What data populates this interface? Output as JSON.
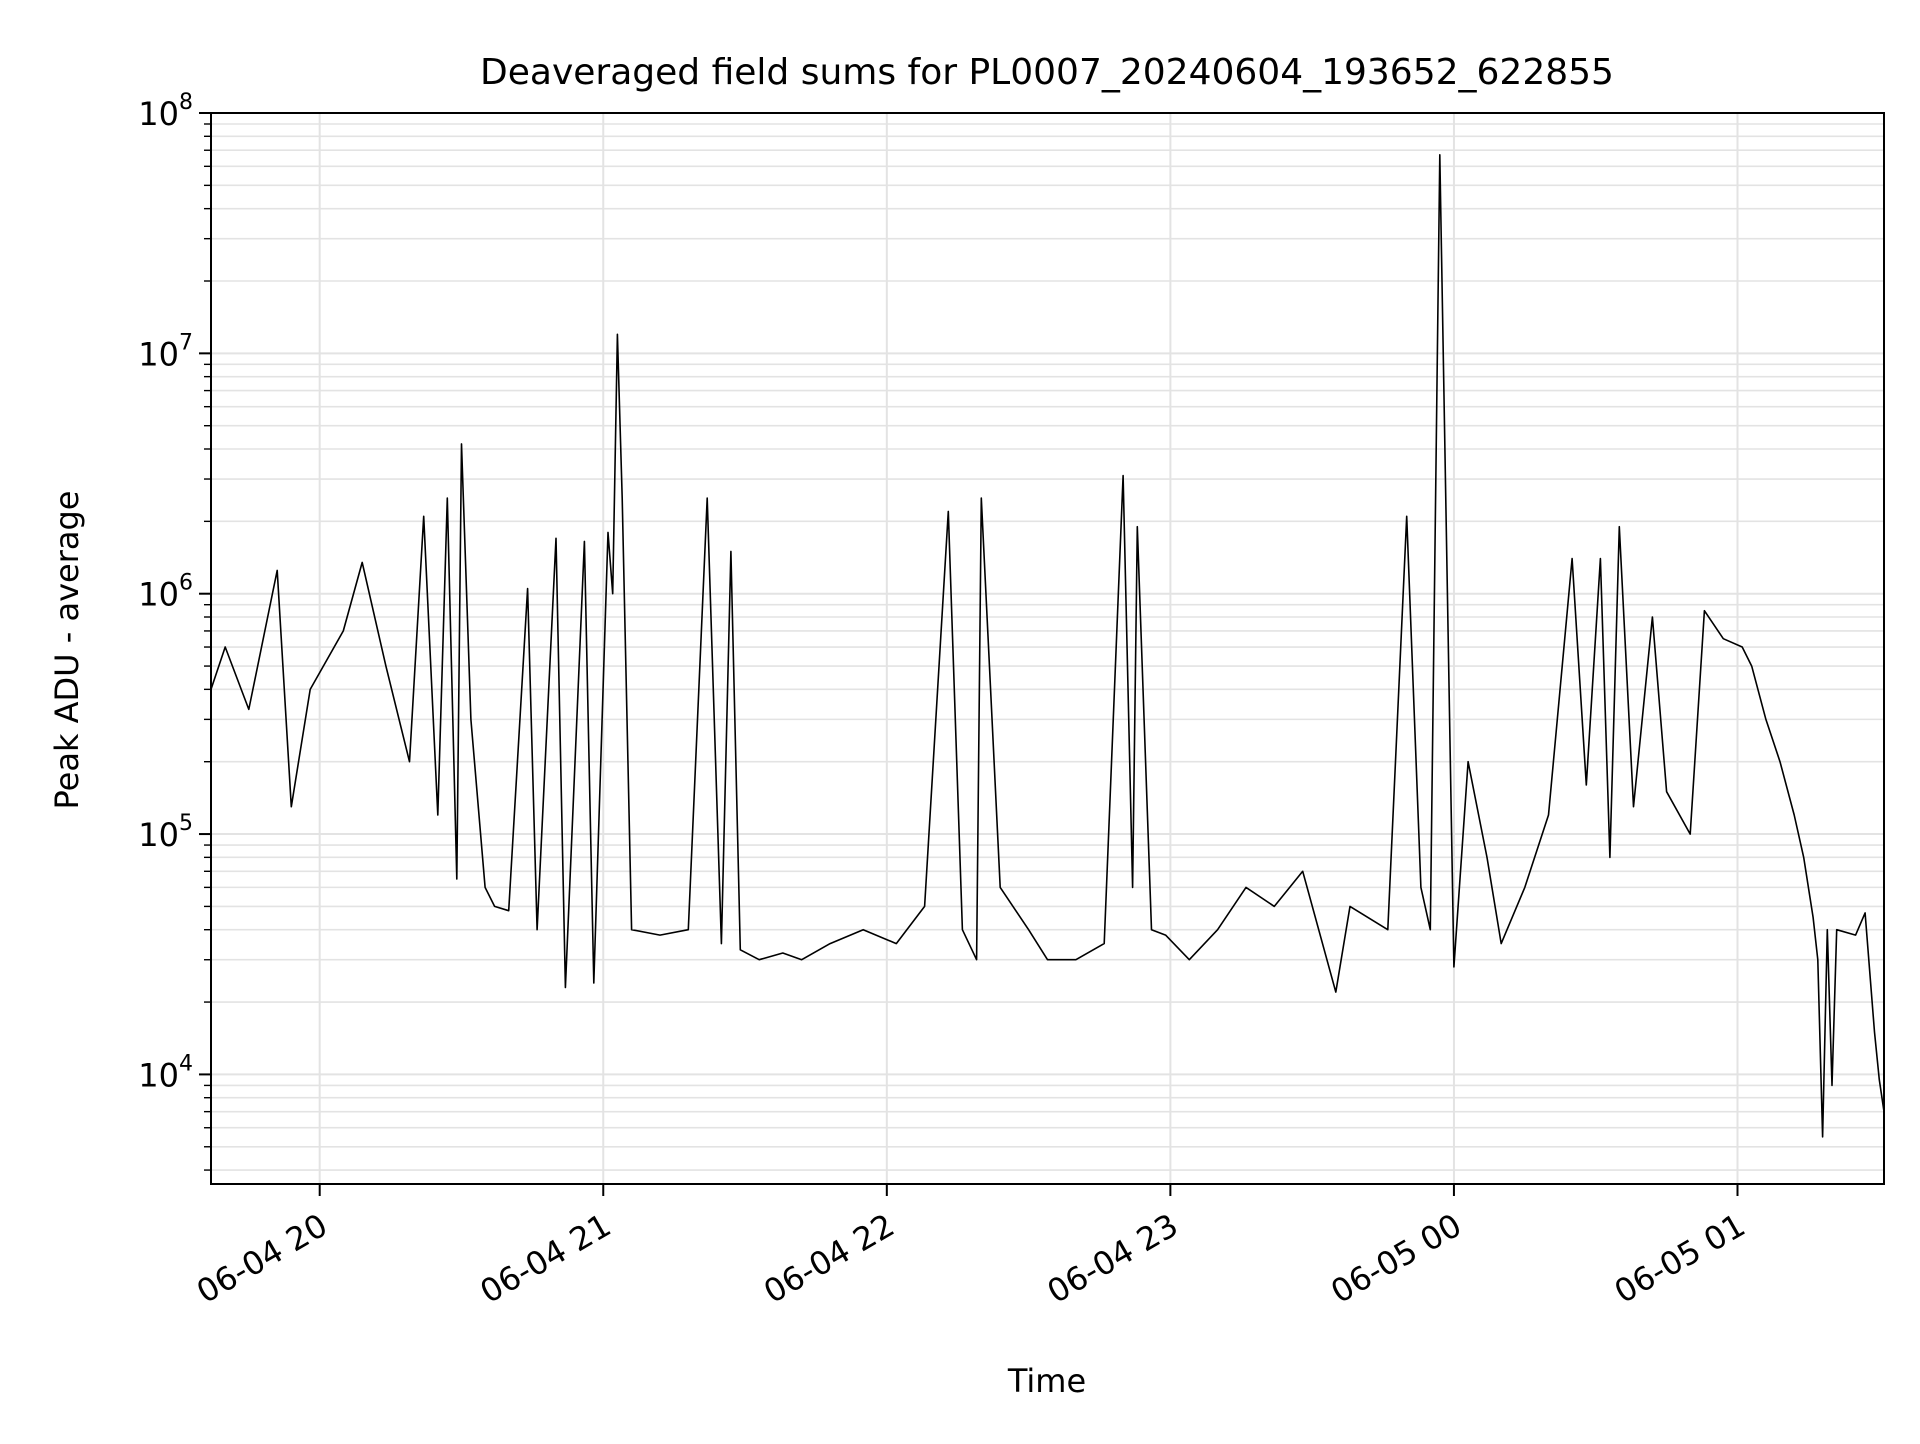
{
  "chart_data": {
    "type": "line",
    "title": "Deaveraged field sums for PL0007_20240604_193652_622855",
    "xlabel": "Time",
    "ylabel": "Peak ADU - average",
    "yscale": "log",
    "ylim": [
      3500,
      100000000
    ],
    "xlim": [
      "2024-06-04 19:37",
      "2024-06-05 01:31"
    ],
    "grid": "on (major and minor, both axes)",
    "legend": "none",
    "line_color": "#000000",
    "x_ticks": [
      {
        "x": "2024-06-04 20:00",
        "label": "06-04 20"
      },
      {
        "x": "2024-06-04 21:00",
        "label": "06-04 21"
      },
      {
        "x": "2024-06-04 22:00",
        "label": "06-04 22"
      },
      {
        "x": "2024-06-04 23:00",
        "label": "06-04 23"
      },
      {
        "x": "2024-06-05 00:00",
        "label": "06-05 00"
      },
      {
        "x": "2024-06-05 01:00",
        "label": "06-05 01"
      }
    ],
    "y_ticks": [
      {
        "value": 10000,
        "base": "10",
        "exp": "4"
      },
      {
        "value": 100000,
        "base": "10",
        "exp": "5"
      },
      {
        "value": 1000000,
        "base": "10",
        "exp": "6"
      },
      {
        "value": 10000000,
        "base": "10",
        "exp": "7"
      },
      {
        "value": 100000000,
        "base": "10",
        "exp": "8"
      }
    ],
    "series": [
      {
        "points": [
          [
            "2024-06-04 19:37",
            400000
          ],
          [
            "2024-06-04 19:40",
            600000
          ],
          [
            "2024-06-04 19:45",
            330000
          ],
          [
            "2024-06-04 19:51",
            1250000
          ],
          [
            "2024-06-04 19:54",
            130000
          ],
          [
            "2024-06-04 19:58",
            400000
          ],
          [
            "2024-06-04 20:05",
            700000
          ],
          [
            "2024-06-04 20:09",
            1350000
          ],
          [
            "2024-06-04 20:14",
            500000
          ],
          [
            "2024-06-04 20:19",
            200000
          ],
          [
            "2024-06-04 20:22",
            2100000
          ],
          [
            "2024-06-04 20:25",
            120000
          ],
          [
            "2024-06-04 20:27",
            2500000
          ],
          [
            "2024-06-04 20:29",
            65000
          ],
          [
            "2024-06-04 20:30",
            4200000
          ],
          [
            "2024-06-04 20:32",
            300000
          ],
          [
            "2024-06-04 20:35",
            60000
          ],
          [
            "2024-06-04 20:37",
            50000
          ],
          [
            "2024-06-04 20:40",
            48000
          ],
          [
            "2024-06-04 20:44",
            1050000
          ],
          [
            "2024-06-04 20:46",
            40000
          ],
          [
            "2024-06-04 20:50",
            1700000
          ],
          [
            "2024-06-04 20:52",
            23000
          ],
          [
            "2024-06-04 20:56",
            1650000
          ],
          [
            "2024-06-04 20:58",
            24000
          ],
          [
            "2024-06-04 21:01",
            1800000
          ],
          [
            "2024-06-04 21:02",
            1000000
          ],
          [
            "2024-06-04 21:03",
            12000000
          ],
          [
            "2024-06-04 21:04",
            2500000
          ],
          [
            "2024-06-04 21:06",
            40000
          ],
          [
            "2024-06-04 21:12",
            38000
          ],
          [
            "2024-06-04 21:18",
            40000
          ],
          [
            "2024-06-04 21:22",
            2500000
          ],
          [
            "2024-06-04 21:25",
            35000
          ],
          [
            "2024-06-04 21:27",
            1500000
          ],
          [
            "2024-06-04 21:29",
            33000
          ],
          [
            "2024-06-04 21:33",
            30000
          ],
          [
            "2024-06-04 21:38",
            32000
          ],
          [
            "2024-06-04 21:42",
            30000
          ],
          [
            "2024-06-04 21:48",
            35000
          ],
          [
            "2024-06-04 21:55",
            40000
          ],
          [
            "2024-06-04 22:02",
            35000
          ],
          [
            "2024-06-04 22:08",
            50000
          ],
          [
            "2024-06-04 22:13",
            2200000
          ],
          [
            "2024-06-04 22:16",
            40000
          ],
          [
            "2024-06-04 22:19",
            30000
          ],
          [
            "2024-06-04 22:20",
            2500000
          ],
          [
            "2024-06-04 22:24",
            60000
          ],
          [
            "2024-06-04 22:30",
            40000
          ],
          [
            "2024-06-04 22:34",
            30000
          ],
          [
            "2024-06-04 22:40",
            30000
          ],
          [
            "2024-06-04 22:46",
            35000
          ],
          [
            "2024-06-04 22:50",
            3100000
          ],
          [
            "2024-06-04 22:52",
            60000
          ],
          [
            "2024-06-04 22:53",
            1900000
          ],
          [
            "2024-06-04 22:56",
            40000
          ],
          [
            "2024-06-04 22:59",
            38000
          ],
          [
            "2024-06-04 23:04",
            30000
          ],
          [
            "2024-06-04 23:10",
            40000
          ],
          [
            "2024-06-04 23:16",
            60000
          ],
          [
            "2024-06-04 23:22",
            50000
          ],
          [
            "2024-06-04 23:28",
            70000
          ],
          [
            "2024-06-04 23:35",
            22000
          ],
          [
            "2024-06-04 23:38",
            50000
          ],
          [
            "2024-06-04 23:46",
            40000
          ],
          [
            "2024-06-04 23:50",
            2100000
          ],
          [
            "2024-06-04 23:53",
            60000
          ],
          [
            "2024-06-04 23:55",
            40000
          ],
          [
            "2024-06-04 23:57",
            67000000
          ],
          [
            "2024-06-05 00:00",
            28000
          ],
          [
            "2024-06-05 00:03",
            200000
          ],
          [
            "2024-06-05 00:07",
            80000
          ],
          [
            "2024-06-05 00:10",
            35000
          ],
          [
            "2024-06-05 00:15",
            60000
          ],
          [
            "2024-06-05 00:20",
            120000
          ],
          [
            "2024-06-05 00:25",
            1400000
          ],
          [
            "2024-06-05 00:28",
            160000
          ],
          [
            "2024-06-05 00:31",
            1400000
          ],
          [
            "2024-06-05 00:33",
            80000
          ],
          [
            "2024-06-05 00:35",
            1900000
          ],
          [
            "2024-06-05 00:38",
            130000
          ],
          [
            "2024-06-05 00:42",
            800000
          ],
          [
            "2024-06-05 00:45",
            150000
          ],
          [
            "2024-06-05 00:50",
            100000
          ],
          [
            "2024-06-05 00:53",
            850000
          ],
          [
            "2024-06-05 00:57",
            650000
          ],
          [
            "2024-06-05 01:01",
            600000
          ],
          [
            "2024-06-05 01:03",
            500000
          ],
          [
            "2024-06-05 01:06",
            300000
          ],
          [
            "2024-06-05 01:09",
            200000
          ],
          [
            "2024-06-05 01:12",
            120000
          ],
          [
            "2024-06-05 01:14",
            80000
          ],
          [
            "2024-06-05 01:16",
            45000
          ],
          [
            "2024-06-05 01:17",
            30000
          ],
          [
            "2024-06-05 01:18",
            5500
          ],
          [
            "2024-06-05 01:19",
            40000
          ],
          [
            "2024-06-05 01:20",
            9000
          ],
          [
            "2024-06-05 01:21",
            40000
          ],
          [
            "2024-06-05 01:25",
            38000
          ],
          [
            "2024-06-05 01:27",
            47000
          ],
          [
            "2024-06-05 01:29",
            15000
          ],
          [
            "2024-06-05 01:30",
            9500
          ],
          [
            "2024-06-05 01:31",
            7000
          ]
        ]
      }
    ]
  }
}
